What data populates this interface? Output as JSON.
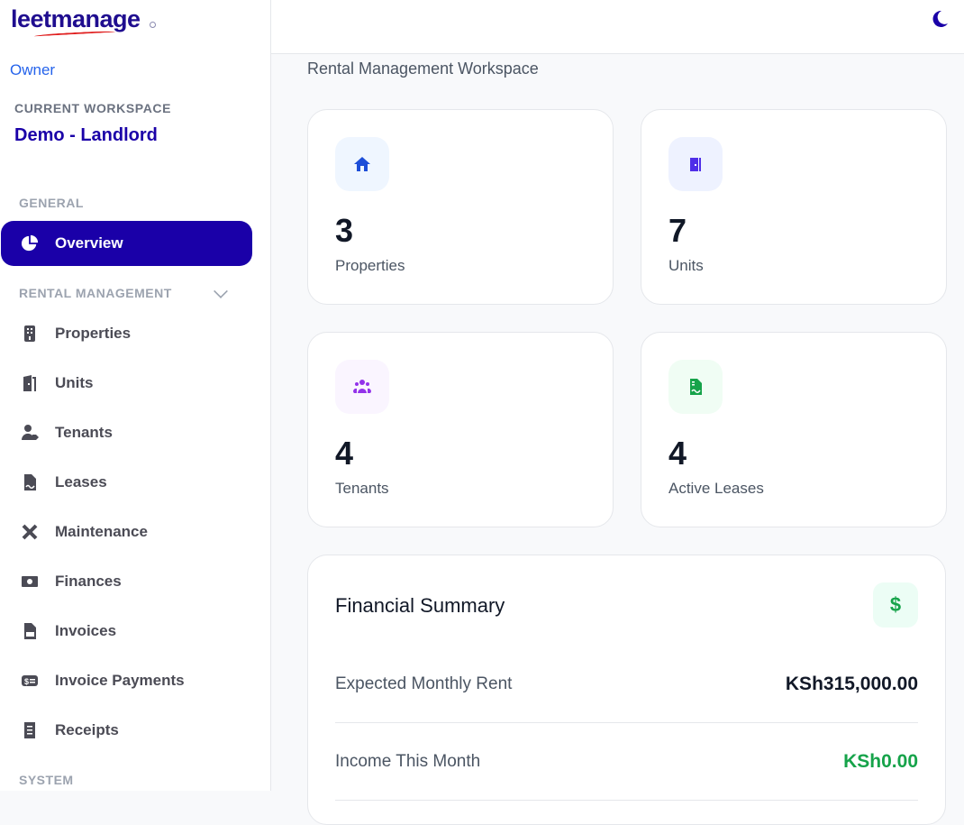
{
  "brand": {
    "logo": "leetmanage"
  },
  "sidebar": {
    "role": "Owner",
    "workspace_label": "CURRENT WORKSPACE",
    "workspace_name": "Demo - Landlord",
    "sections": {
      "general": "GENERAL",
      "rental": "RENTAL MANAGEMENT",
      "system": "SYSTEM"
    },
    "overview": {
      "label": "Overview",
      "icon": "pie-chart-icon"
    },
    "items": [
      {
        "label": "Properties",
        "icon": "building-icon"
      },
      {
        "label": "Units",
        "icon": "door-icon"
      },
      {
        "label": "Tenants",
        "icon": "user-tag-icon"
      },
      {
        "label": "Leases",
        "icon": "file-signature-icon"
      },
      {
        "label": "Maintenance",
        "icon": "tools-icon"
      },
      {
        "label": "Finances",
        "icon": "money-bill-icon"
      },
      {
        "label": "Invoices",
        "icon": "file-invoice-icon"
      },
      {
        "label": "Invoice Payments",
        "icon": "money-check-icon"
      },
      {
        "label": "Receipts",
        "icon": "receipt-icon"
      }
    ]
  },
  "header": {
    "theme_icon": "moon-icon"
  },
  "main": {
    "subtitle": "Rental Management Workspace",
    "stats": [
      {
        "value": "3",
        "label": "Properties",
        "icon": "home-icon",
        "color": "#1d4ed8",
        "bg": "#eff6ff"
      },
      {
        "value": "7",
        "label": "Units",
        "icon": "door-icon",
        "color": "#4f2ee8",
        "bg": "#eef2ff"
      },
      {
        "value": "4",
        "label": "Tenants",
        "icon": "users-icon",
        "color": "#9333ea",
        "bg": "#faf5ff"
      },
      {
        "value": "4",
        "label": "Active Leases",
        "icon": "file-contract-icon",
        "color": "#16a34a",
        "bg": "#f0fdf4"
      }
    ],
    "financial": {
      "title": "Financial Summary",
      "icon_symbol": "$",
      "rows": [
        {
          "label": "Expected Monthly Rent",
          "value": "KSh315,000.00",
          "color": "#111827"
        },
        {
          "label": "Income This Month",
          "value": "KSh0.00",
          "color": "#16a34a"
        }
      ]
    }
  }
}
